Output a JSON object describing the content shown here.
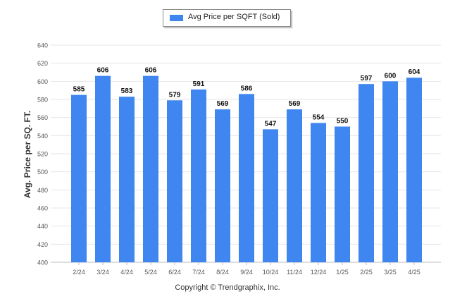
{
  "colors": {
    "bar": "#3f86f0",
    "grid": "#e6e6e6",
    "axis": "#bdbdbd",
    "tick_text": "#555555",
    "value_text": "#111111"
  },
  "chart_data": {
    "type": "bar",
    "categories": [
      "2/24",
      "3/24",
      "4/24",
      "5/24",
      "6/24",
      "7/24",
      "8/24",
      "9/24",
      "10/24",
      "11/24",
      "12/24",
      "1/25",
      "2/25",
      "3/25",
      "4/25"
    ],
    "series": [
      {
        "name": "Avg Price per SQFT (Sold)",
        "values": [
          585,
          606,
          583,
          606,
          579,
          591,
          569,
          586,
          547,
          569,
          554,
          550,
          597,
          600,
          604
        ]
      }
    ],
    "ylabel": "Avg. Price per SQ. FT.",
    "xlabel": "",
    "ylim": [
      400,
      640
    ],
    "yticks": [
      400,
      420,
      440,
      460,
      480,
      500,
      520,
      540,
      560,
      580,
      600,
      620,
      640
    ],
    "grid": true,
    "legend": "top-center",
    "data_labels": true
  },
  "footer": {
    "copyright": "Copyright © Trendgraphix, Inc."
  }
}
